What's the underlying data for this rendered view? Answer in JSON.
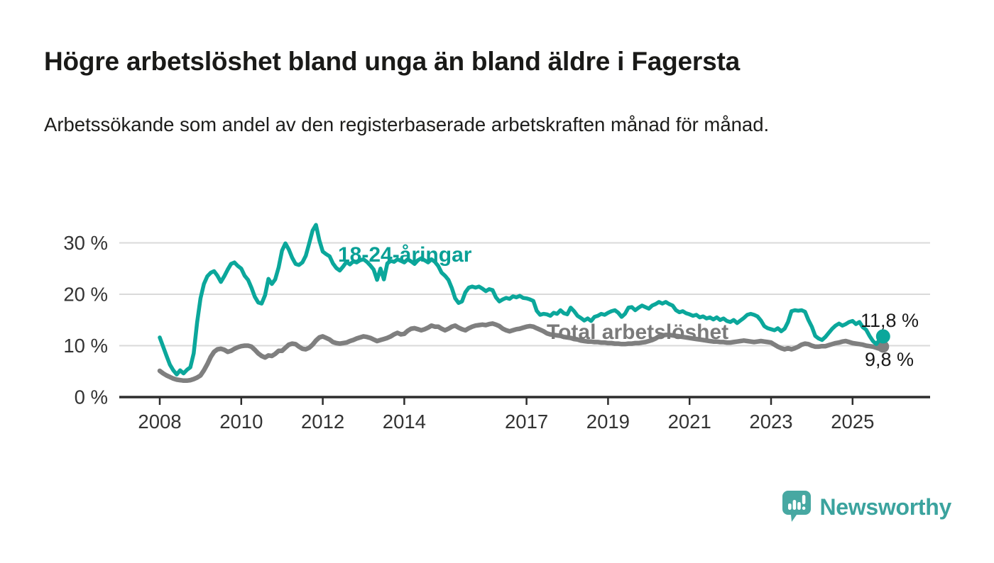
{
  "header": {
    "title": "Högre arbetslöshet bland unga än bland äldre i Fagersta",
    "subtitle": "Arbetssökande som andel av den registerbaserade arbetskraften månad för månad."
  },
  "footer": {
    "brand": "Newsworthy"
  },
  "colors": {
    "young_line": "#0ba79b",
    "total_line": "#7f7f7f",
    "grid": "#dadada",
    "axis": "#2d2d2d",
    "end_label": "#1a1a1a",
    "logo_teal": "#47a8a2"
  },
  "chart_data": {
    "type": "line",
    "title": "Högre arbetslöshet bland unga än bland äldre i Fagersta",
    "xlabel": "",
    "ylabel": "",
    "x_start": "2008-01",
    "x_end": "2025-10",
    "frequency": "monthly",
    "grid": "horizontal",
    "legend_position": "inline-labels",
    "ylim": [
      0,
      35
    ],
    "y_axis": {
      "tick_values": [
        0,
        10,
        20,
        30
      ],
      "ticks": [
        "0 %",
        "10 %",
        "20 %",
        "30 %"
      ]
    },
    "x_axis": {
      "tick_years": [
        2008,
        2010,
        2012,
        2014,
        2017,
        2019,
        2021,
        2023,
        2025
      ],
      "ticks": [
        "2008",
        "2010",
        "2012",
        "2014",
        "2017",
        "2019",
        "2021",
        "2023",
        "2025"
      ]
    },
    "series": [
      {
        "name": "18-24-åringar",
        "color": "#0ba79b",
        "end_label": "11,8 %",
        "last_value": 11.8,
        "values": [
          11.6,
          9.8,
          8.0,
          6.3,
          5.2,
          4.4,
          5.2,
          4.6,
          5.3,
          5.8,
          8.5,
          14.5,
          19.2,
          22.0,
          23.5,
          24.2,
          24.5,
          23.6,
          22.4,
          23.5,
          24.8,
          25.9,
          26.2,
          25.5,
          25.0,
          23.6,
          22.8,
          21.3,
          19.5,
          18.4,
          18.2,
          19.8,
          23.0,
          22.0,
          22.9,
          25.2,
          28.5,
          29.9,
          28.7,
          27.1,
          25.9,
          25.7,
          26.2,
          27.5,
          29.9,
          32.4,
          33.5,
          30.5,
          28.3,
          27.8,
          27.4,
          26.0,
          25.1,
          24.6,
          25.4,
          26.3,
          25.8,
          26.4,
          26.2,
          26.6,
          26.8,
          26.3,
          25.6,
          24.8,
          22.8,
          25.0,
          22.9,
          26.0,
          26.5,
          26.3,
          26.8,
          26.5,
          26.2,
          26.8,
          26.4,
          25.9,
          26.6,
          27.0,
          26.6,
          26.2,
          26.8,
          26.3,
          25.5,
          24.2,
          23.6,
          22.8,
          21.2,
          19.2,
          18.3,
          18.6,
          20.4,
          21.3,
          21.5,
          21.3,
          21.5,
          21.1,
          20.6,
          21.0,
          20.8,
          19.4,
          18.6,
          19.0,
          19.3,
          19.1,
          19.6,
          19.4,
          19.7,
          19.3,
          19.2,
          19.0,
          18.7,
          16.8,
          16.0,
          16.2,
          16.1,
          15.8,
          16.4,
          16.2,
          16.9,
          16.3,
          16.1,
          17.4,
          16.7,
          15.8,
          15.4,
          14.9,
          15.3,
          14.8,
          15.6,
          15.8,
          16.2,
          16.0,
          16.4,
          16.7,
          16.9,
          16.4,
          15.6,
          16.2,
          17.4,
          17.5,
          16.9,
          17.4,
          17.8,
          17.5,
          17.2,
          17.8,
          18.1,
          18.5,
          18.2,
          18.5,
          18.1,
          17.8,
          16.9,
          16.5,
          16.7,
          16.3,
          16.1,
          15.8,
          16.0,
          15.5,
          15.7,
          15.3,
          15.5,
          15.1,
          15.5,
          15.0,
          15.3,
          14.8,
          14.6,
          15.0,
          14.4,
          14.9,
          15.4,
          16.0,
          16.2,
          16.0,
          15.7,
          14.9,
          13.8,
          13.4,
          13.2,
          13.0,
          13.4,
          12.8,
          13.3,
          14.6,
          16.7,
          16.9,
          16.8,
          16.9,
          16.6,
          15.0,
          13.7,
          11.9,
          11.4,
          11.1,
          11.7,
          12.5,
          13.3,
          13.9,
          14.3,
          13.9,
          14.2,
          14.6,
          14.8,
          14.2,
          14.6,
          13.6,
          13.1,
          11.9,
          10.9,
          10.3,
          11.2,
          11.8
        ]
      },
      {
        "name": "Total arbetslöshet",
        "color": "#7f7f7f",
        "end_label": "9,8 %",
        "last_value": 9.8,
        "values": [
          5.1,
          4.6,
          4.2,
          3.9,
          3.6,
          3.4,
          3.3,
          3.2,
          3.2,
          3.3,
          3.5,
          3.8,
          4.2,
          5.2,
          6.4,
          7.8,
          8.8,
          9.3,
          9.4,
          9.2,
          8.8,
          9.0,
          9.4,
          9.7,
          9.9,
          10.0,
          10.0,
          9.8,
          9.2,
          8.5,
          8.0,
          7.7,
          8.1,
          8.0,
          8.4,
          9.0,
          9.0,
          9.6,
          10.2,
          10.4,
          10.3,
          9.8,
          9.4,
          9.3,
          9.6,
          10.2,
          11.0,
          11.6,
          11.8,
          11.5,
          11.2,
          10.7,
          10.5,
          10.4,
          10.5,
          10.6,
          10.9,
          11.1,
          11.4,
          11.6,
          11.8,
          11.7,
          11.5,
          11.2,
          10.9,
          11.1,
          11.3,
          11.5,
          11.8,
          12.2,
          12.5,
          12.2,
          12.3,
          12.9,
          13.3,
          13.4,
          13.2,
          13.0,
          13.2,
          13.5,
          13.9,
          13.7,
          13.7,
          13.3,
          13.0,
          13.3,
          13.7,
          13.9,
          13.5,
          13.2,
          13.0,
          13.4,
          13.7,
          13.9,
          14.0,
          14.1,
          14.0,
          14.2,
          14.3,
          14.1,
          13.8,
          13.3,
          13.0,
          12.8,
          13.0,
          13.2,
          13.3,
          13.5,
          13.7,
          13.8,
          13.7,
          13.4,
          13.1,
          12.8,
          12.4,
          12.2,
          12.1,
          12.0,
          11.9,
          11.7,
          11.6,
          11.5,
          11.3,
          11.2,
          11.0,
          10.9,
          10.8,
          10.8,
          10.7,
          10.7,
          10.6,
          10.6,
          10.5,
          10.5,
          10.4,
          10.4,
          10.3,
          10.3,
          10.4,
          10.4,
          10.5,
          10.5,
          10.6,
          10.7,
          10.9,
          11.1,
          11.4,
          11.8,
          12.0,
          12.1,
          12.1,
          12.0,
          11.9,
          11.8,
          11.7,
          11.6,
          11.5,
          11.4,
          11.3,
          11.2,
          11.1,
          11.0,
          10.9,
          10.8,
          10.8,
          10.7,
          10.7,
          10.6,
          10.6,
          10.7,
          10.8,
          10.9,
          11.0,
          10.9,
          10.8,
          10.7,
          10.8,
          10.9,
          10.8,
          10.7,
          10.6,
          10.2,
          9.8,
          9.5,
          9.3,
          9.5,
          9.3,
          9.5,
          9.8,
          10.2,
          10.4,
          10.3,
          10.0,
          9.8,
          9.8,
          9.9,
          9.9,
          10.1,
          10.3,
          10.5,
          10.6,
          10.8,
          10.9,
          10.7,
          10.5,
          10.4,
          10.3,
          10.2,
          10.0,
          9.9,
          9.8,
          9.6,
          9.4,
          9.8
        ]
      }
    ]
  }
}
